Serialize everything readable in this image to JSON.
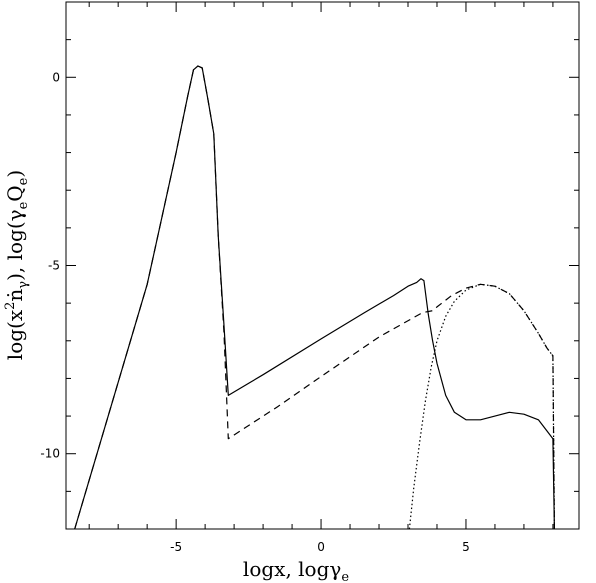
{
  "chart_data": {
    "type": "line",
    "title": "",
    "xlabel": {
      "text": "logx,  logγ",
      "subscript": "e"
    },
    "ylabel": {
      "part1": "log(x",
      "sup": "2",
      "part2": "ṅ",
      "sub1": "γ",
      "part3": "),  log(γ",
      "sub2": "e",
      "part4": "Q",
      "sub3": "e",
      "part5": ")"
    },
    "xlim": [
      -8.8,
      8.9
    ],
    "ylim": [
      -12.0,
      2.0
    ],
    "x_ticks": [
      {
        "value": -5,
        "label": "-5"
      },
      {
        "value": 0,
        "label": "0"
      },
      {
        "value": 5,
        "label": "5"
      }
    ],
    "y_ticks": [
      {
        "value": 0,
        "label": "0"
      },
      {
        "value": -5,
        "label": "-5"
      },
      {
        "value": -10,
        "label": "-10"
      }
    ],
    "x_minor_step": 1,
    "y_minor_step": 1,
    "grid": false,
    "legend": "none",
    "series": [
      {
        "style": "solid",
        "points": [
          [
            -8.5,
            -12.0
          ],
          [
            -6.0,
            -5.5
          ],
          [
            -5.0,
            -2.0
          ],
          [
            -4.6,
            -0.5
          ],
          [
            -4.4,
            0.2
          ],
          [
            -4.25,
            0.3
          ],
          [
            -4.1,
            0.25
          ],
          [
            -3.9,
            -0.6
          ],
          [
            -3.7,
            -1.5
          ],
          [
            -3.55,
            -4.2
          ],
          [
            -3.35,
            -6.6
          ],
          [
            -3.2,
            -8.45
          ],
          [
            -2.0,
            -7.9
          ],
          [
            0.0,
            -6.95
          ],
          [
            1.5,
            -6.25
          ],
          [
            2.5,
            -5.8
          ],
          [
            3.0,
            -5.55
          ],
          [
            3.3,
            -5.45
          ],
          [
            3.45,
            -5.35
          ],
          [
            3.55,
            -5.4
          ],
          [
            3.7,
            -6.3
          ],
          [
            3.85,
            -7.0
          ],
          [
            4.0,
            -7.6
          ],
          [
            4.3,
            -8.45
          ],
          [
            4.6,
            -8.9
          ],
          [
            5.0,
            -9.1
          ],
          [
            5.5,
            -9.1
          ],
          [
            6.0,
            -9.0
          ],
          [
            6.5,
            -8.9
          ],
          [
            7.0,
            -8.95
          ],
          [
            7.5,
            -9.1
          ],
          [
            7.8,
            -9.4
          ],
          [
            8.0,
            -9.6
          ],
          [
            8.05,
            -12.0
          ]
        ]
      },
      {
        "style": "dashed",
        "points": [
          [
            -8.5,
            -12.0
          ],
          [
            -6.0,
            -5.5
          ],
          [
            -5.0,
            -2.0
          ],
          [
            -4.6,
            -0.5
          ],
          [
            -4.4,
            0.2
          ],
          [
            -4.25,
            0.3
          ],
          [
            -4.1,
            0.25
          ],
          [
            -3.9,
            -0.6
          ],
          [
            -3.7,
            -1.5
          ],
          [
            -3.55,
            -4.2
          ],
          [
            -3.35,
            -6.8
          ],
          [
            -3.2,
            -9.6
          ],
          [
            -1.5,
            -8.75
          ],
          [
            0.0,
            -7.95
          ],
          [
            2.0,
            -6.9
          ],
          [
            3.5,
            -6.25
          ],
          [
            3.85,
            -6.2
          ],
          [
            4.0,
            -6.1
          ],
          [
            4.5,
            -5.8
          ],
          [
            5.0,
            -5.6
          ],
          [
            5.5,
            -5.5
          ],
          [
            6.0,
            -5.55
          ],
          [
            6.5,
            -5.75
          ],
          [
            7.0,
            -6.2
          ],
          [
            7.5,
            -6.8
          ],
          [
            7.8,
            -7.2
          ],
          [
            8.0,
            -7.4
          ],
          [
            8.05,
            -12.0
          ]
        ]
      },
      {
        "style": "dotted",
        "points": [
          [
            3.05,
            -12.0
          ],
          [
            3.2,
            -10.9
          ],
          [
            3.4,
            -9.7
          ],
          [
            3.6,
            -8.6
          ],
          [
            3.8,
            -7.7
          ],
          [
            4.0,
            -7.0
          ],
          [
            4.3,
            -6.35
          ],
          [
            4.6,
            -5.95
          ],
          [
            5.0,
            -5.65
          ],
          [
            5.5,
            -5.5
          ],
          [
            6.0,
            -5.55
          ],
          [
            6.5,
            -5.75
          ],
          [
            7.0,
            -6.2
          ],
          [
            7.5,
            -6.8
          ],
          [
            7.8,
            -7.2
          ],
          [
            8.0,
            -7.4
          ],
          [
            8.05,
            -12.0
          ]
        ]
      }
    ]
  }
}
